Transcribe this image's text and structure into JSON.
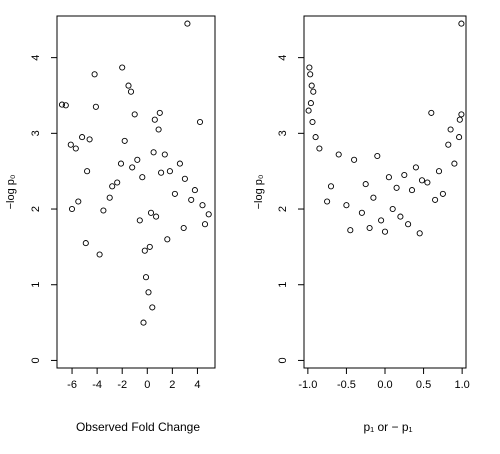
{
  "chart_data": [
    {
      "type": "scatter",
      "xlabel": "Observed Fold Change",
      "ylabel": "−log p₀",
      "xlim": [
        -7.2,
        5.4
      ],
      "ylim": [
        -0.1,
        4.55
      ],
      "x_ticks": [
        -6,
        -4,
        -2,
        0,
        2,
        4
      ],
      "x_tick_labels": [
        "-6",
        "-4",
        "-2",
        "0",
        "2",
        "4"
      ],
      "y_ticks": [
        0,
        1,
        2,
        3,
        4
      ],
      "y_tick_labels": [
        "0",
        "1",
        "2",
        "3",
        "4"
      ],
      "grid": false,
      "series": [
        {
          "x": [
            3.2,
            -2.0,
            -4.2,
            -1.5,
            -1.3,
            -6.5,
            -6.8,
            -1.0,
            -4.1,
            1.0,
            0.6,
            0.9,
            4.2,
            -5.2,
            -6.1,
            -5.7,
            -4.6,
            -1.8,
            0.5,
            2.6,
            -4.8,
            1.8,
            3.8,
            4.9,
            -5.5,
            -6.0,
            -2.8,
            4.4,
            -3.5,
            -0.8,
            1.4,
            3.0,
            -1.2,
            2.2,
            -3.0,
            4.6,
            -2.4,
            0.3,
            -0.4,
            1.1,
            -0.6,
            0.7,
            -2.1,
            2.9,
            3.5,
            -3.8,
            -4.9,
            1.6,
            0.2,
            -0.2,
            -0.1,
            0.1,
            0.4,
            -0.3
          ],
          "y": [
            4.45,
            3.87,
            3.78,
            3.63,
            3.55,
            3.37,
            3.38,
            3.25,
            3.35,
            3.27,
            3.18,
            3.05,
            3.15,
            2.95,
            2.85,
            2.8,
            2.92,
            2.9,
            2.75,
            2.6,
            2.5,
            2.5,
            2.25,
            1.93,
            2.1,
            2.0,
            2.3,
            2.05,
            1.98,
            2.65,
            2.72,
            2.4,
            2.55,
            2.2,
            2.15,
            1.8,
            2.35,
            1.95,
            2.42,
            2.48,
            1.85,
            1.9,
            2.6,
            1.75,
            2.12,
            1.4,
            1.55,
            1.6,
            1.5,
            1.45,
            1.1,
            0.9,
            0.7,
            0.5
          ]
        }
      ]
    },
    {
      "type": "scatter",
      "xlabel": "p₁ or − p₁",
      "ylabel": "−log p₀",
      "xlim": [
        -1.05,
        1.05
      ],
      "ylim": [
        -0.1,
        4.55
      ],
      "x_ticks": [
        -1.0,
        -0.5,
        0.0,
        0.5,
        1.0
      ],
      "x_tick_labels": [
        "-1.0",
        "-0.5",
        "0.0",
        "0.5",
        "1.0"
      ],
      "y_ticks": [
        0,
        1,
        2,
        3,
        4
      ],
      "y_tick_labels": [
        "0",
        "1",
        "2",
        "3",
        "4"
      ],
      "grid": false,
      "series": [
        {
          "x": [
            0.99,
            -0.98,
            -0.97,
            -0.95,
            -0.93,
            -0.96,
            -0.99,
            -0.94,
            0.6,
            0.85,
            0.97,
            0.99,
            0.96,
            0.82,
            0.7,
            0.55,
            -0.6,
            -0.4,
            -0.1,
            0.05,
            0.25,
            -0.85,
            -0.7,
            0.4,
            0.15,
            -0.25,
            0.9,
            -0.9,
            0.75,
            -0.75,
            0.35,
            -0.5,
            0.1,
            -0.15,
            0.48,
            0.65,
            -0.3,
            0.2,
            -0.05,
            0.3,
            -0.2,
            0.0,
            0.45,
            -0.45
          ],
          "y": [
            4.45,
            3.87,
            3.78,
            3.63,
            3.55,
            3.4,
            3.3,
            3.15,
            3.27,
            3.05,
            3.18,
            3.25,
            2.95,
            2.85,
            2.5,
            2.35,
            2.72,
            2.65,
            2.7,
            2.42,
            2.45,
            2.8,
            2.3,
            2.55,
            2.28,
            2.33,
            2.6,
            2.95,
            2.2,
            2.1,
            2.25,
            2.05,
            2.0,
            2.15,
            2.38,
            2.12,
            1.95,
            1.9,
            1.85,
            1.8,
            1.75,
            1.7,
            1.68,
            1.72
          ]
        }
      ]
    }
  ]
}
